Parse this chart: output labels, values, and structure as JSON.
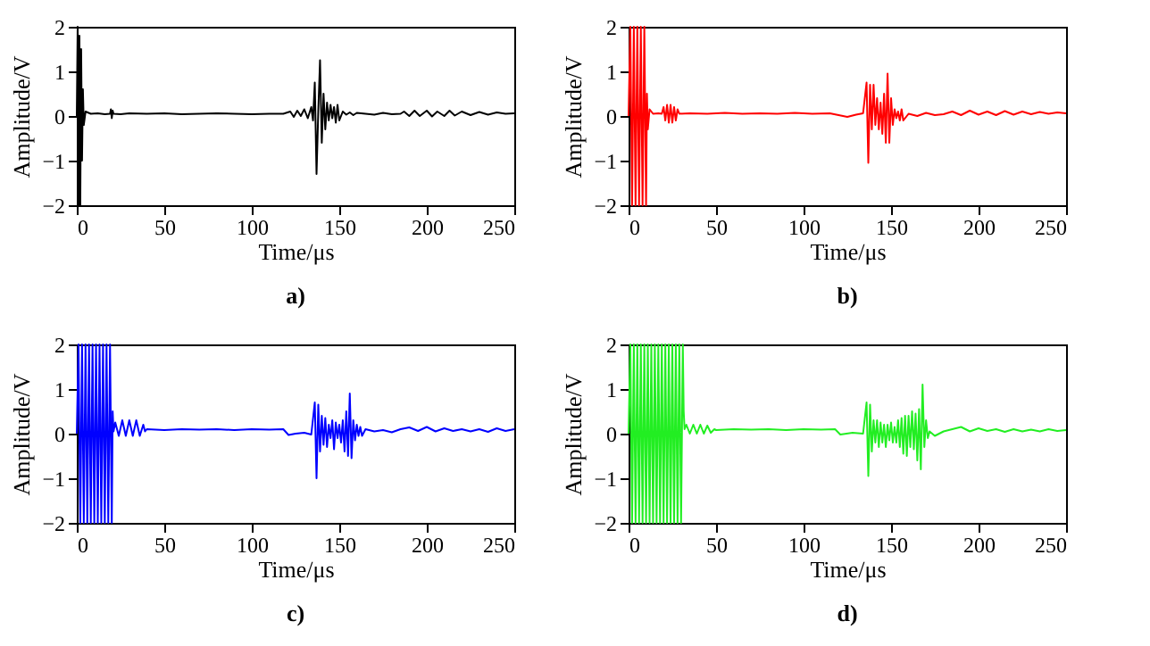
{
  "chart_data": [
    {
      "type": "line",
      "title": "a)",
      "xlabel": "Time/μs",
      "ylabel": "Amplitude/V",
      "xlim": [
        0,
        250
      ],
      "xticks": [
        0,
        50,
        100,
        150,
        200,
        250
      ],
      "ylim": [
        -2,
        2
      ],
      "yticks": [
        -2,
        -1,
        0,
        1,
        2
      ],
      "grid": false,
      "x": [
        0,
        0.5,
        1,
        1.5,
        2,
        2.5,
        3,
        3.5,
        4,
        5,
        8,
        12,
        16,
        19,
        19.5,
        20,
        20.5,
        21,
        25,
        30,
        40,
        50,
        60,
        70,
        80,
        90,
        100,
        110,
        118,
        122,
        124,
        126,
        128,
        130,
        132,
        134,
        135,
        136,
        137,
        138,
        139,
        140,
        141,
        142,
        143,
        144,
        145,
        146,
        147,
        148,
        149,
        150,
        152,
        154,
        156,
        158,
        160,
        165,
        170,
        175,
        180,
        185,
        187,
        190,
        193,
        196,
        200,
        203,
        206,
        210,
        213,
        216,
        220,
        225,
        230,
        235,
        240,
        245,
        250
      ],
      "series": [
        {
          "color": "#000000",
          "values": [
            0,
            2,
            -2,
            1.8,
            -2,
            1.5,
            -1,
            0.6,
            -0.2,
            0.1,
            0.05,
            0.06,
            0.04,
            0.05,
            0.15,
            -0.05,
            0.12,
            0.05,
            0.04,
            0.06,
            0.05,
            0.06,
            0.04,
            0.05,
            0.06,
            0.05,
            0.04,
            0.05,
            0.05,
            0.1,
            -0.02,
            0.12,
            0,
            0.15,
            -0.05,
            0.2,
            -0.1,
            0.75,
            -1.3,
            0.1,
            1.25,
            -0.6,
            0.5,
            -0.3,
            0.3,
            -0.1,
            0.25,
            -0.05,
            0.2,
            -0.15,
            0.25,
            -0.1,
            0.1,
            0.03,
            0.08,
            0.02,
            0.07,
            0.05,
            0.03,
            0.07,
            0.04,
            0.05,
            0.1,
            0,
            0.12,
            0,
            0.12,
            -0.01,
            0.1,
            0,
            0.12,
            0.01,
            0.1,
            0.02,
            0.09,
            0.03,
            0.08,
            0.05,
            0.06
          ]
        }
      ]
    },
    {
      "type": "line",
      "title": "b)",
      "xlabel": "Time/μs",
      "ylabel": "Amplitude/V",
      "xlim": [
        0,
        250
      ],
      "xticks": [
        0,
        50,
        100,
        150,
        200,
        250
      ],
      "ylim": [
        -2,
        2
      ],
      "yticks": [
        -2,
        -1,
        0,
        1,
        2
      ],
      "grid": false,
      "x": [
        0,
        1,
        2,
        3,
        4,
        5,
        6,
        7,
        8,
        9,
        10,
        10.5,
        11,
        12,
        14,
        17,
        19,
        20,
        21,
        22,
        23,
        24,
        25,
        26,
        27,
        28,
        29,
        35,
        45,
        55,
        65,
        75,
        85,
        95,
        105,
        115,
        120,
        125,
        130,
        134,
        136,
        137,
        138,
        139,
        140,
        141,
        142,
        143,
        144,
        145,
        146,
        147,
        148,
        149,
        150,
        151,
        152,
        153,
        154,
        155,
        156,
        157,
        160,
        165,
        170,
        175,
        180,
        185,
        190,
        195,
        200,
        205,
        210,
        215,
        220,
        225,
        230,
        235,
        240,
        245,
        250
      ],
      "series": [
        {
          "color": "#ff0000",
          "values": [
            0,
            2,
            -2,
            2,
            -2,
            2,
            -2,
            2,
            -2,
            2,
            -2,
            0.5,
            -0.3,
            0.15,
            0.05,
            0.06,
            0.05,
            0.2,
            -0.1,
            0.25,
            -0.15,
            0.25,
            -0.15,
            0.2,
            -0.1,
            0.15,
            0.05,
            0.06,
            0.05,
            0.07,
            0.05,
            0.06,
            0.05,
            0.07,
            0.05,
            0.06,
            0.02,
            -0.02,
            0.03,
            0.06,
            0.75,
            -1.05,
            0.7,
            -0.3,
            0.7,
            -0.2,
            0.4,
            -0.3,
            0.3,
            -0.4,
            0.5,
            -0.6,
            0.95,
            -0.6,
            0.4,
            -0.2,
            0.15,
            -0.05,
            0.1,
            -0.1,
            0.15,
            -0.1,
            0.05,
            0,
            0.07,
            0.02,
            0.04,
            0.1,
            0.02,
            0.12,
            0.03,
            0.1,
            0.02,
            0.11,
            0.03,
            0.1,
            0.04,
            0.09,
            0.05,
            0.08,
            0.06
          ]
        }
      ]
    },
    {
      "type": "line",
      "title": "c)",
      "xlabel": "Time/μs",
      "ylabel": "Amplitude/V",
      "xlim": [
        0,
        250
      ],
      "xticks": [
        0,
        50,
        100,
        150,
        200,
        250
      ],
      "ylim": [
        -2,
        2
      ],
      "yticks": [
        -2,
        -1,
        0,
        1,
        2
      ],
      "grid": false,
      "x": [
        0,
        1,
        2,
        3,
        4,
        5,
        6,
        7,
        8,
        9,
        10,
        11,
        12,
        13,
        14,
        15,
        16,
        17,
        18,
        19,
        20,
        20.5,
        21,
        22,
        24,
        26,
        28,
        30,
        32,
        34,
        36,
        38,
        39,
        40,
        50,
        60,
        70,
        80,
        90,
        100,
        110,
        118,
        121,
        125,
        130,
        134,
        136,
        137,
        138,
        139,
        140,
        141,
        142,
        143,
        144,
        145,
        146,
        147,
        148,
        149,
        150,
        151,
        152,
        153,
        154,
        155,
        156,
        157,
        158,
        159,
        160,
        161,
        162,
        163,
        165,
        170,
        175,
        180,
        185,
        190,
        195,
        200,
        205,
        210,
        215,
        220,
        225,
        230,
        235,
        240,
        245,
        250
      ],
      "series": [
        {
          "color": "#0000ff",
          "values": [
            0,
            2,
            -2,
            2,
            -2,
            2,
            -2,
            2,
            -2,
            2,
            -2,
            2,
            -2,
            2,
            -2,
            2,
            -2,
            2,
            -2,
            2,
            -2,
            0.5,
            0.05,
            0.25,
            -0.05,
            0.3,
            -0.05,
            0.3,
            -0.05,
            0.3,
            -0.05,
            0.2,
            0.05,
            0.1,
            0.08,
            0.1,
            0.09,
            0.1,
            0.08,
            0.1,
            0.09,
            0.1,
            -0.03,
            0,
            0.02,
            -0.02,
            0.7,
            -1.0,
            0.65,
            -0.4,
            0.4,
            -0.25,
            0.35,
            -0.3,
            0.2,
            -0.1,
            0.3,
            -0.35,
            0.25,
            -0.1,
            0.2,
            -0.2,
            0.3,
            -0.4,
            0.5,
            -0.5,
            0.9,
            -0.55,
            0.3,
            -0.15,
            0.2,
            -0.05,
            0.15,
            -0.05,
            0.1,
            0.05,
            0.08,
            0.03,
            0.1,
            0.14,
            0.06,
            0.15,
            0.05,
            0.12,
            0.06,
            0.1,
            0.05,
            0.1,
            0.04,
            0.12,
            0.06,
            0.1
          ]
        }
      ]
    },
    {
      "type": "line",
      "title": "d)",
      "xlabel": "Time/μs",
      "ylabel": "Amplitude/V",
      "xlim": [
        0,
        250
      ],
      "xticks": [
        0,
        50,
        100,
        150,
        200,
        250
      ],
      "ylim": [
        -2,
        2
      ],
      "yticks": [
        -2,
        -1,
        0,
        1,
        2
      ],
      "grid": false,
      "x": [
        0,
        1,
        2,
        3,
        4,
        5,
        6,
        7,
        8,
        9,
        10,
        11,
        12,
        13,
        14,
        15,
        16,
        17,
        18,
        19,
        20,
        21,
        22,
        23,
        24,
        25,
        26,
        27,
        28,
        29,
        30,
        31,
        31.5,
        32,
        33,
        35,
        37,
        39,
        41,
        43,
        45,
        47,
        49,
        50,
        60,
        70,
        80,
        90,
        100,
        110,
        118,
        121,
        128,
        134,
        136,
        137,
        138,
        139,
        140,
        141,
        142,
        143,
        144,
        145,
        146,
        147,
        148,
        149,
        150,
        151,
        152,
        153,
        154,
        155,
        156,
        157,
        158,
        159,
        160,
        161,
        162,
        163,
        164,
        165,
        166,
        167,
        168,
        169,
        170,
        171,
        172,
        175,
        180,
        185,
        190,
        195,
        200,
        205,
        210,
        215,
        220,
        225,
        230,
        235,
        240,
        245,
        250
      ],
      "series": [
        {
          "color": "#22ee22",
          "values": [
            0,
            2,
            -2,
            2,
            -2,
            2,
            -2,
            2,
            -2,
            2,
            -2,
            2,
            -2,
            2,
            -2,
            2,
            -2,
            2,
            -2,
            2,
            -2,
            2,
            -2,
            2,
            -2,
            2,
            -2,
            2,
            -2,
            2,
            -2,
            2,
            0.5,
            0.1,
            0.2,
            0,
            0.2,
            0,
            0.2,
            0,
            0.18,
            0.02,
            0.1,
            0.08,
            0.1,
            0.09,
            0.1,
            0.08,
            0.1,
            0.09,
            0.1,
            -0.02,
            0.02,
            0,
            0.7,
            -0.95,
            0.65,
            -0.4,
            0.3,
            -0.2,
            0.3,
            -0.3,
            0.25,
            -0.2,
            0.2,
            -0.3,
            0.2,
            -0.15,
            0.25,
            -0.2,
            0.15,
            -0.2,
            0.3,
            -0.3,
            0.35,
            -0.45,
            0.4,
            -0.5,
            0.4,
            -0.3,
            0.5,
            -0.35,
            0.45,
            -0.6,
            0.55,
            -0.8,
            1.1,
            -0.3,
            0.3,
            -0.1,
            0.05,
            -0.05,
            0.05,
            0.1,
            0.15,
            0.05,
            0.12,
            0.06,
            0.1,
            0.04,
            0.1,
            0.05,
            0.09,
            0.05,
            0.1,
            0.06,
            0.08
          ]
        }
      ]
    }
  ]
}
